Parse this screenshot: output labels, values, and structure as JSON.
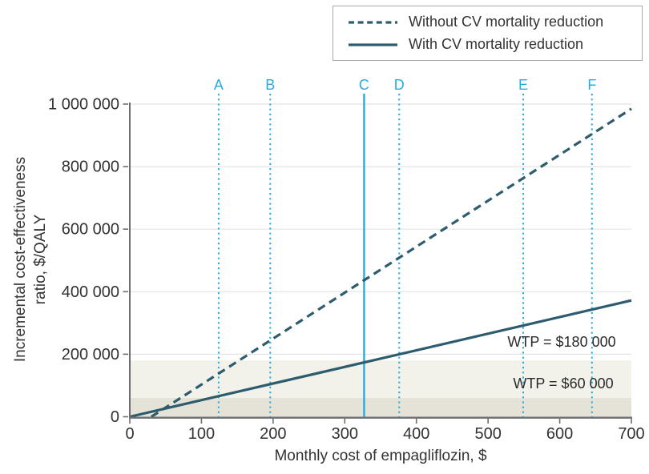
{
  "legend": {
    "items": [
      {
        "label": "Without CV mortality reduction",
        "style": "dashed"
      },
      {
        "label": "With CV mortality reduction",
        "style": "solid"
      }
    ]
  },
  "chart_data": {
    "type": "line",
    "title": "",
    "xlabel": "Monthly cost of empagliflozin, $",
    "ylabel": "Incremental cost-effectiveness ratio, $/QALY",
    "ylabel_lines": [
      "Incremental cost-effectiveness",
      "ratio, $/QALY"
    ],
    "xlim": [
      0,
      700
    ],
    "ylim": [
      0,
      1000000
    ],
    "grid": true,
    "legend_position": "top-right",
    "x_ticks": [
      0,
      100,
      200,
      300,
      400,
      500,
      600,
      700
    ],
    "x_tick_labels": [
      "0",
      "100",
      "200",
      "300",
      "400",
      "500",
      "600",
      "700"
    ],
    "y_ticks": [
      0,
      200000,
      400000,
      600000,
      800000,
      1000000
    ],
    "y_tick_labels": [
      "0",
      "200 000",
      "400 000",
      "600 000",
      "800 000",
      "1 000 000"
    ],
    "series": [
      {
        "name": "Without CV mortality reduction",
        "style": "dashed",
        "points": [
          [
            30,
            0
          ],
          [
            700,
            985000
          ]
        ]
      },
      {
        "name": "With CV mortality reduction",
        "style": "solid",
        "points": [
          [
            0,
            0
          ],
          [
            700,
            372000
          ]
        ]
      }
    ],
    "reference_lines": [
      {
        "label": "A",
        "x": 124,
        "style": "dotted"
      },
      {
        "label": "B",
        "x": 196,
        "style": "dotted"
      },
      {
        "label": "C",
        "x": 327,
        "style": "solid"
      },
      {
        "label": "D",
        "x": 376,
        "style": "dotted"
      },
      {
        "label": "E",
        "x": 549,
        "style": "dotted"
      },
      {
        "label": "F",
        "x": 645,
        "style": "dotted"
      }
    ],
    "wtp_bands": [
      {
        "label": "WTP = $180 000",
        "value": 180000,
        "fill": "#f2f1ea"
      },
      {
        "label": "WTP = $60 000",
        "value": 60000,
        "fill": "#e5e3d8"
      }
    ]
  },
  "colors": {
    "series": "#2d5c6f",
    "accent_cyan": "#29abe2",
    "grid": "#e4e4e4",
    "axis": "#6d6e71",
    "text": "#323232"
  }
}
